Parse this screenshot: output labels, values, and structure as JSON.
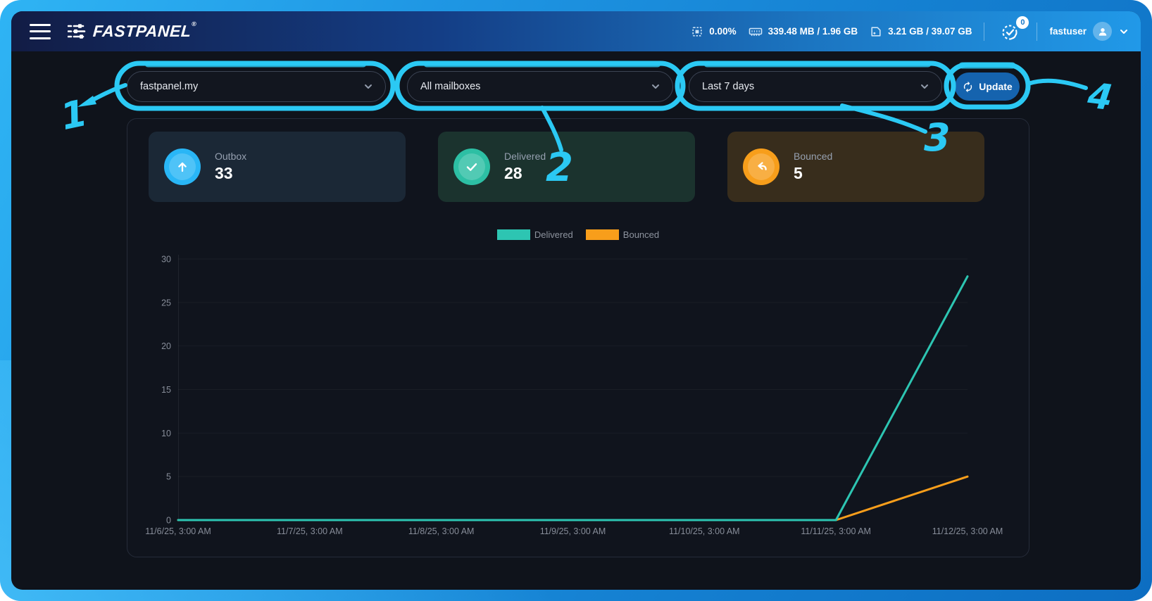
{
  "topbar": {
    "brand": "FASTPANEL",
    "brand_reg": "®",
    "cpu_usage": "0.00%",
    "memory_usage": "339.48 MB / 1.96 GB",
    "disk_usage": "3.21 GB / 39.07 GB",
    "notifications_count": "0",
    "username": "fastuser"
  },
  "toolbar": {
    "domain_select_value": "fastpanel.my",
    "mailbox_select_value": "All mailboxes",
    "period_select_value": "Last 7 days",
    "update_label": "Update"
  },
  "cards": [
    {
      "label": "Outbox",
      "value": "33",
      "icon": "arrow-up-icon",
      "circle_color": "#29b6f6",
      "bg_color": "#1b2836"
    },
    {
      "label": "Delivered",
      "value": "28",
      "icon": "check-icon",
      "circle_color": "#2dbfa4",
      "bg_color": "#1b332e"
    },
    {
      "label": "Bounced",
      "value": "5",
      "icon": "undo-arrow-icon",
      "circle_color": "#f79e1b",
      "bg_color": "#382d1c"
    }
  ],
  "chart_data": {
    "type": "line",
    "title": "",
    "categories": [
      "11/6/25, 3:00 AM",
      "11/7/25, 3:00 AM",
      "11/8/25, 3:00 AM",
      "11/9/25, 3:00 AM",
      "11/10/25, 3:00 AM",
      "11/11/25, 3:00 AM",
      "11/12/25, 3:00 AM"
    ],
    "series": [
      {
        "name": "Delivered",
        "color": "#2dc5b2",
        "values": [
          0,
          0,
          0,
          0,
          0,
          0,
          28
        ]
      },
      {
        "name": "Bounced",
        "color": "#f89e1b",
        "values": [
          0,
          0,
          0,
          0,
          0,
          0,
          5
        ]
      }
    ],
    "ylim": [
      0,
      30
    ],
    "yticks": [
      0,
      5,
      10,
      15,
      20,
      25,
      30
    ],
    "xlabel": "",
    "ylabel": "",
    "legend_position": "top-center",
    "grid": "faint-horizontal"
  },
  "annotations": {
    "color": "#2bc9f4",
    "labels": [
      "1",
      "2",
      "3",
      "4"
    ]
  }
}
